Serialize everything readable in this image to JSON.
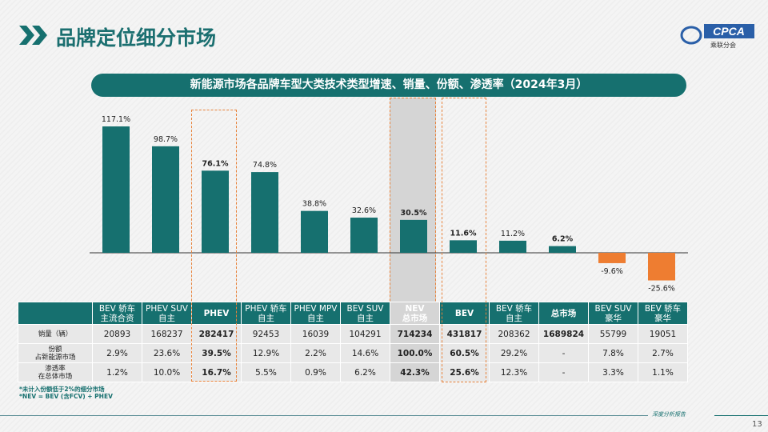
{
  "header": {
    "title": "品牌定位细分市场",
    "logo_text": "CPCA",
    "logo_sub": "乘联分会"
  },
  "subtitle": "新能源市场各品牌车型大类技术类型增速、销量、份额、渗透率（2024年3月）",
  "chart_data": {
    "type": "bar",
    "title": "新能源市场各品牌车型大类技术类型增速、销量、份额、渗透率（2024年3月）",
    "categories": [
      "BEV 轿车 主流合资",
      "PHEV SUV 自主",
      "PHEV",
      "PHEV 轿车 自主",
      "PHEV MPV 自主",
      "BEV SUV 自主",
      "NEV 总市场",
      "BEV",
      "BEV 轿车 自主",
      "总市场",
      "BEV SUV 豪华",
      "BEV 轿车 豪华"
    ],
    "values": [
      117.1,
      98.7,
      76.1,
      74.8,
      38.8,
      32.6,
      30.5,
      11.6,
      11.2,
      6.2,
      -9.6,
      -25.6
    ],
    "labels": [
      "117.1%",
      "98.7%",
      "76.1%",
      "74.8%",
      "38.8%",
      "32.6%",
      "30.5%",
      "11.6%",
      "11.2%",
      "6.2%",
      "-9.6%",
      "-25.6%"
    ],
    "bold": [
      false,
      false,
      true,
      false,
      false,
      false,
      true,
      true,
      false,
      true,
      false,
      false
    ],
    "ylim": [
      -30,
      120
    ],
    "grid": false,
    "colors": {
      "positive": "#16706f",
      "negative": "#ee7d31"
    }
  },
  "table": {
    "headers": [
      [
        "BEV 轿车",
        "主流合资"
      ],
      [
        "PHEV SUV",
        "自主"
      ],
      [
        "PHEV",
        ""
      ],
      [
        "PHEV 轿车",
        "自主"
      ],
      [
        "PHEV MPV",
        "自主"
      ],
      [
        "BEV SUV",
        "自主"
      ],
      [
        "NEV",
        "总市场"
      ],
      [
        "BEV",
        ""
      ],
      [
        "BEV 轿车",
        "自主"
      ],
      [
        "总市场",
        ""
      ],
      [
        "BEV SUV",
        "豪华"
      ],
      [
        "BEV 轿车",
        "豪华"
      ]
    ],
    "rows": [
      {
        "label": [
          "销量（辆）",
          ""
        ],
        "cells": [
          "20893",
          "168237",
          "282417",
          "92453",
          "16039",
          "104291",
          "714234",
          "431817",
          "208362",
          "1689824",
          "55799",
          "19051"
        ]
      },
      {
        "label": [
          "份额",
          "占新能源市场"
        ],
        "cells": [
          "2.9%",
          "23.6%",
          "39.5%",
          "12.9%",
          "2.2%",
          "14.6%",
          "100.0%",
          "60.5%",
          "29.2%",
          "-",
          "7.8%",
          "2.7%"
        ]
      },
      {
        "label": [
          "渗透率",
          "在总体市场"
        ],
        "cells": [
          "1.2%",
          "10.0%",
          "16.7%",
          "5.5%",
          "0.9%",
          "6.2%",
          "42.3%",
          "25.6%",
          "12.3%",
          "-",
          "3.3%",
          "1.1%"
        ]
      }
    ]
  },
  "notes": [
    "*未计入份额低于2%的细分市场",
    "*NEV = BEV (含FCV) + PHEV"
  ],
  "footer": {
    "text": "深度分析报告",
    "page": "13"
  }
}
